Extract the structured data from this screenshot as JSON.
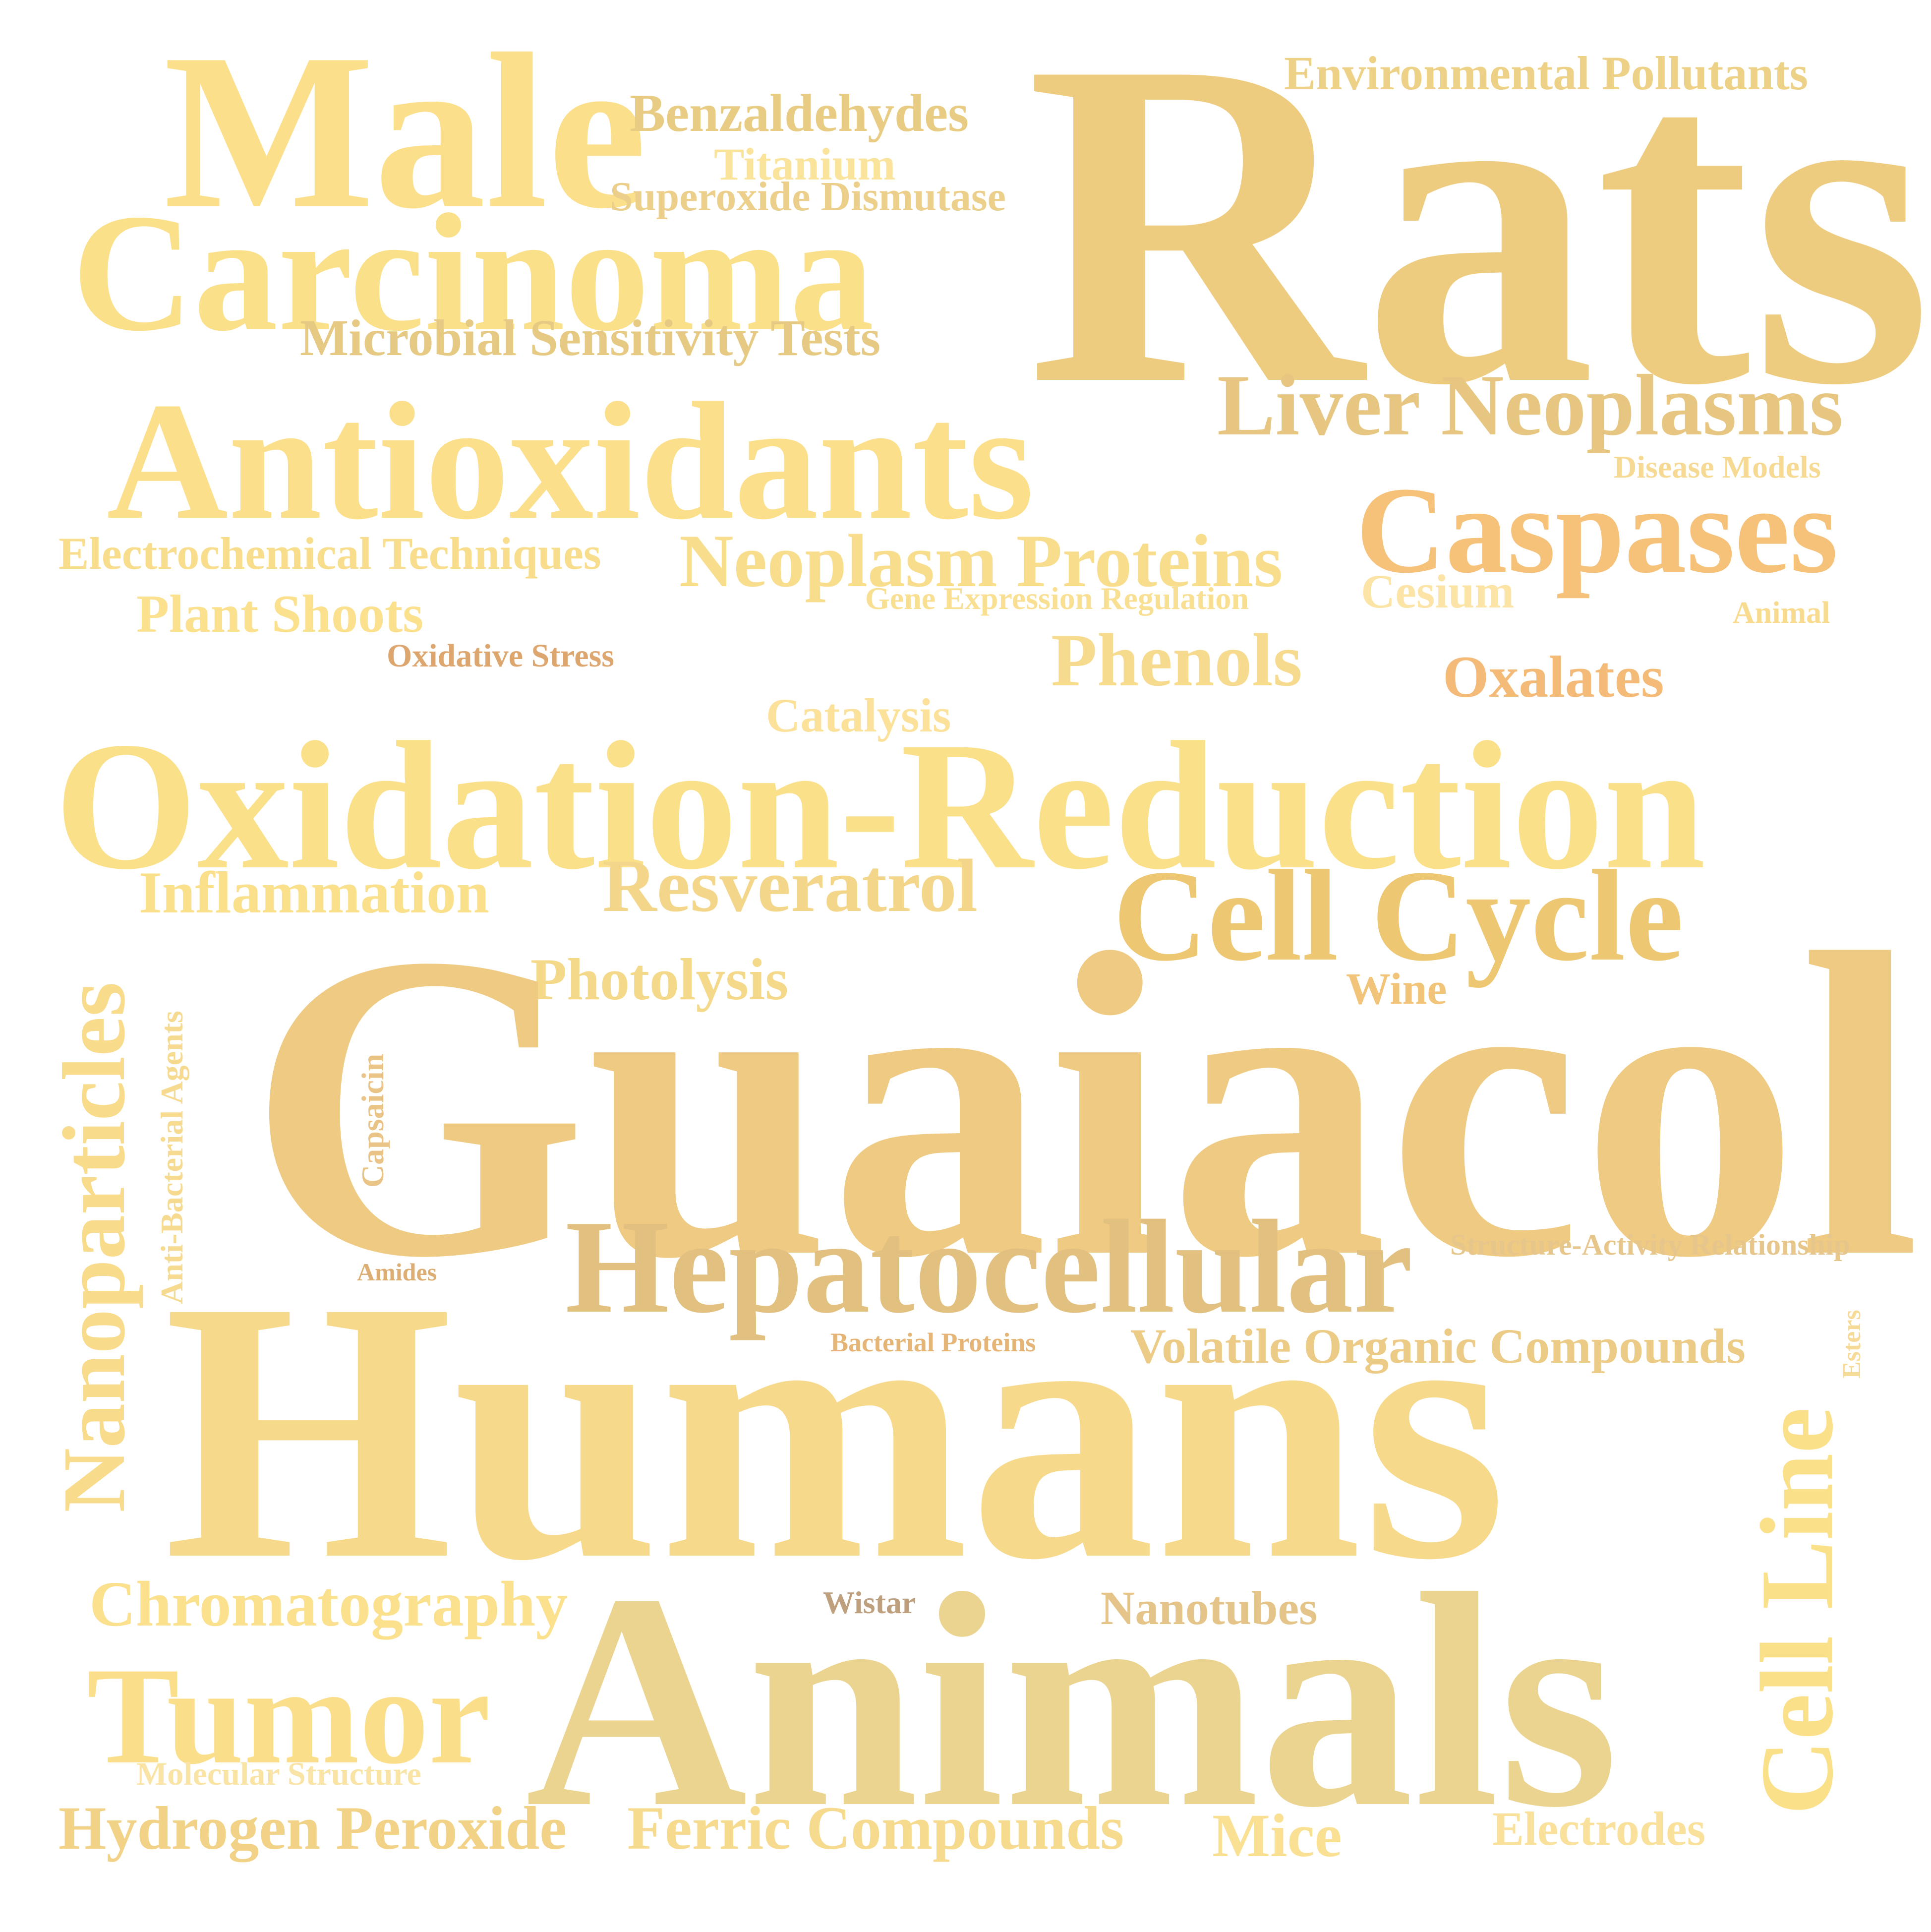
{
  "words": [
    {
      "text": "Rats",
      "color": "#EDCC7F"
    },
    {
      "text": "Male",
      "color": "#FBDF8A"
    },
    {
      "text": "Carcinoma",
      "color": "#FBE08A"
    },
    {
      "text": "Benzaldehydes",
      "color": "#E9CC83"
    },
    {
      "text": "Titanium",
      "color": "#FAE39B"
    },
    {
      "text": "Superoxide Dismutase",
      "color": "#EBCF8A"
    },
    {
      "text": "Environmental Pollutants",
      "color": "#EDD186"
    },
    {
      "text": "Microbial Sensitivity Tests",
      "color": "#E6CA83"
    },
    {
      "text": "Antioxidants",
      "color": "#FBDF8A"
    },
    {
      "text": "Liver Neoplasms",
      "color": "#E6C680"
    },
    {
      "text": "Disease Models",
      "color": "#F6DA94"
    },
    {
      "text": "Caspases",
      "color": "#F6C27A"
    },
    {
      "text": "Electrochemical Techniques",
      "color": "#F8DD8C"
    },
    {
      "text": "Neoplasm Proteins",
      "color": "#F8DE8C"
    },
    {
      "text": "Gene Expression Regulation",
      "color": "#F9DF92"
    },
    {
      "text": "Cesium",
      "color": "#FBE4A6"
    },
    {
      "text": "Plant Shoots",
      "color": "#FBE08E"
    },
    {
      "text": "Animal",
      "color": "#F8DB8E"
    },
    {
      "text": "Oxidative Stress",
      "color": "#DDA66E"
    },
    {
      "text": "Phenols",
      "color": "#F6DA8D"
    },
    {
      "text": "Oxalates",
      "color": "#F4BA78"
    },
    {
      "text": "Catalysis",
      "color": "#FBE19A"
    },
    {
      "text": "Oxidation-Reduction",
      "color": "#FBE08A"
    },
    {
      "text": "Inflammation",
      "color": "#FBE08B"
    },
    {
      "text": "Resveratrol",
      "color": "#F4D68A"
    },
    {
      "text": "Cell Cycle",
      "color": "#EDC772"
    },
    {
      "text": "Photolysis",
      "color": "#F4D98A"
    },
    {
      "text": "Wine",
      "color": "#F1C479"
    },
    {
      "text": "Guaiacol",
      "color": "#EECA82"
    },
    {
      "text": "Nanoparticles",
      "color": "#F8DC8C"
    },
    {
      "text": "Anti-Bacterial Agents",
      "color": "#F6DA90"
    },
    {
      "text": "Capsaicin",
      "color": "#EAC486"
    },
    {
      "text": "Structure-Activity Relationship",
      "color": "#E7C68B"
    },
    {
      "text": "Amides",
      "color": "#DCAE74"
    },
    {
      "text": "Hepatocellular",
      "color": "#E2C080"
    },
    {
      "text": "Cell Line",
      "color": "#FBE08A"
    },
    {
      "text": "Esters",
      "color": "#F6DA98"
    },
    {
      "text": "Bacterial Proteins",
      "color": "#E4B576"
    },
    {
      "text": "Volatile Organic Compounds",
      "color": "#EBCB85"
    },
    {
      "text": "Humans",
      "color": "#F6D98A"
    },
    {
      "text": "Chromatography",
      "color": "#FBE08E"
    },
    {
      "text": "Wistar",
      "color": "#BFA07E"
    },
    {
      "text": "Nanotubes",
      "color": "#E4C488"
    },
    {
      "text": "Animals",
      "color": "#EAD490"
    },
    {
      "text": "Tumor",
      "color": "#FBDE8A"
    },
    {
      "text": "Molecular Structure",
      "color": "#F9E3A5"
    },
    {
      "text": "Hydrogen Peroxide",
      "color": "#F2D286"
    },
    {
      "text": "Ferric Compounds",
      "color": "#F6DA8E"
    },
    {
      "text": "Mice",
      "color": "#FAE092"
    },
    {
      "text": "Electrodes",
      "color": "#F9E09B"
    }
  ]
}
